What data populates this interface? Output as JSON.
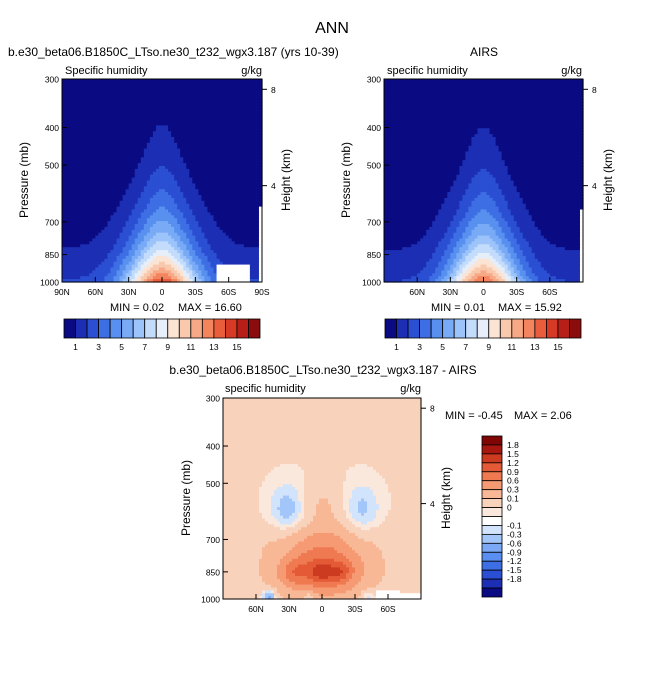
{
  "figure": {
    "title": "ANN"
  },
  "colors": {
    "q_levels": [
      "#0a0a82",
      "#1c2fb4",
      "#2b4fd2",
      "#3e6ee4",
      "#5890f0",
      "#79aaf6",
      "#9cc4fa",
      "#c3dcfc",
      "#e6eefa",
      "#fbe4d4",
      "#f9c9ad",
      "#f7a886",
      "#f3845e",
      "#ea5d3c",
      "#d63a24",
      "#b71e18",
      "#8a0c0c"
    ],
    "diff_levels": [
      "#0a0a82",
      "#1c2fb4",
      "#2b4fd2",
      "#3e6ee4",
      "#5a8ef0",
      "#7ba9f6",
      "#a3c6fa",
      "#d2e4fc",
      "#ffffff",
      "#fbe8dc",
      "#f9d2bc",
      "#f8b896",
      "#f59a72",
      "#ef7a52",
      "#e45a36",
      "#cc3a20",
      "#a8170f",
      "#800606"
    ]
  },
  "chart_data": [
    {
      "type": "heatmap",
      "id": "model",
      "title": "b.e30_beta06.B1850C_LTso.ne30_t232_wgx3.187 (yrs 10-39)",
      "left_label": "Specific humidity",
      "right_label": "g/kg",
      "ylabel": "Pressure (mb)",
      "ylabel_right": "Height (km)",
      "x_ticks": [
        "90N",
        "60N",
        "30N",
        "0",
        "30S",
        "60S",
        "90S"
      ],
      "x_range": [
        90,
        -90
      ],
      "y_ticks": [
        "300",
        "400",
        "500",
        "700",
        "850",
        "1000"
      ],
      "y_range": [
        300,
        1000
      ],
      "height_ticks": [
        "8",
        "4"
      ],
      "min_text": "MIN =  0.02",
      "max_text": "MAX =  16.60",
      "min": 0.02,
      "max": 16.6,
      "surface": 13.8,
      "width_scale": 1.0
    },
    {
      "type": "heatmap",
      "id": "obs",
      "title": "AIRS",
      "left_label": "specific humidity",
      "right_label": "g/kg",
      "ylabel": "Pressure (mb)",
      "ylabel_right": "Height (km)",
      "x_ticks": [
        "60N",
        "30N",
        "0",
        "30S",
        "60S"
      ],
      "x_range": [
        90,
        -90
      ],
      "y_ticks": [
        "300",
        "400",
        "500",
        "700",
        "850",
        "1000"
      ],
      "y_range": [
        300,
        1000
      ],
      "height_ticks": [
        "8",
        "4"
      ],
      "min_text": "MIN =  0.01",
      "max_text": "MAX =  15.92",
      "min": 0.01,
      "max": 15.92,
      "surface": 13.2,
      "width_scale": 0.97
    },
    {
      "type": "heatmap",
      "id": "diff",
      "title": "b.e30_beta06.B1850C_LTso.ne30_t232_wgx3.187 - AIRS",
      "left_label": "specific humidity",
      "right_label": "g/kg",
      "ylabel": "Pressure (mb)",
      "ylabel_right": "Height (km)",
      "x_ticks": [
        "60N",
        "30N",
        "0",
        "30S",
        "60S"
      ],
      "x_range": [
        90,
        -90
      ],
      "y_ticks": [
        "300",
        "400",
        "500",
        "700",
        "850",
        "1000"
      ],
      "y_range": [
        300,
        1000
      ],
      "height_ticks": [
        "8",
        "4"
      ],
      "min_text": "MIN = -0.45",
      "max_text": "MAX =  2.06",
      "min": -0.45,
      "max": 2.06
    }
  ],
  "colorbars": {
    "q": {
      "labels": [
        "1",
        "3",
        "5",
        "7",
        "9",
        "11",
        "13",
        "15"
      ]
    },
    "diff": {
      "labels": [
        "1.8",
        "1.5",
        "1.2",
        "0.9",
        "0.6",
        "0.3",
        "0.1",
        "0",
        "-0.1",
        "-0.3",
        "-0.6",
        "-0.9",
        "-1.2",
        "-1.5",
        "-1.8"
      ]
    }
  }
}
